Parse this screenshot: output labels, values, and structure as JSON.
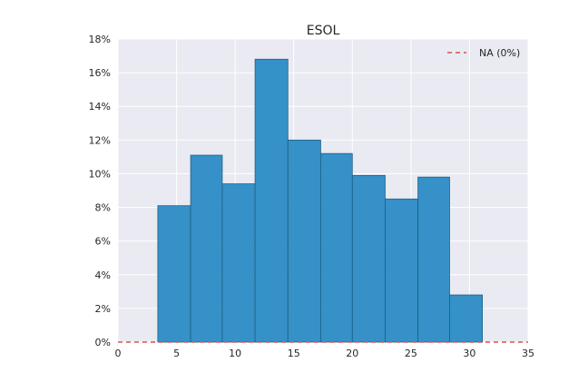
{
  "chart_data": {
    "type": "bar",
    "title": "ESOL",
    "xlabel": "",
    "ylabel": "",
    "xlim": [
      0,
      35
    ],
    "ylim": [
      0,
      18
    ],
    "xticks": [
      0,
      5,
      10,
      15,
      20,
      25,
      30,
      35
    ],
    "yticks": [
      0,
      2,
      4,
      6,
      8,
      10,
      12,
      14,
      16,
      18
    ],
    "ytick_format": "percent",
    "grid": true,
    "bins": [
      {
        "x0": 3.4,
        "x1": 6.2,
        "value": 8.1
      },
      {
        "x0": 6.2,
        "x1": 8.9,
        "value": 11.1
      },
      {
        "x0": 8.9,
        "x1": 11.7,
        "value": 9.4
      },
      {
        "x0": 11.7,
        "x1": 14.5,
        "value": 16.8
      },
      {
        "x0": 14.5,
        "x1": 17.3,
        "value": 12.0
      },
      {
        "x0": 17.3,
        "x1": 20.0,
        "value": 11.2
      },
      {
        "x0": 20.0,
        "x1": 22.8,
        "value": 9.9
      },
      {
        "x0": 22.8,
        "x1": 25.6,
        "value": 8.5
      },
      {
        "x0": 25.6,
        "x1": 28.3,
        "value": 9.8
      },
      {
        "x0": 28.3,
        "x1": 31.1,
        "value": 2.8
      }
    ],
    "reference_line": {
      "y": 0,
      "label": "NA (0%)",
      "style": "dashed",
      "color": "#d9534f"
    },
    "legend": {
      "position": "top-right",
      "entries": [
        "NA (0%)"
      ]
    },
    "bar_color": "#2b8cc4",
    "background": "#eaeaf2"
  }
}
